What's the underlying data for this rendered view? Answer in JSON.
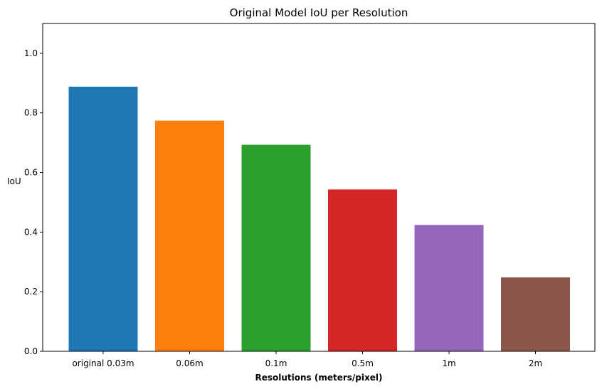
{
  "chart_data": {
    "type": "bar",
    "title": "Original Model IoU per Resolution",
    "xlabel": "Resolutions (meters/pixel)",
    "ylabel": "IoU",
    "categories": [
      "original 0.03m",
      "0.06m",
      "0.1m",
      "0.5m",
      "1m",
      "2m"
    ],
    "values": [
      0.888,
      0.774,
      0.693,
      0.543,
      0.424,
      0.248
    ],
    "colors": [
      "#1f77b4",
      "#ff7f0e",
      "#2ca02c",
      "#d62728",
      "#9467bd",
      "#8c564b"
    ],
    "ylim": [
      0,
      1.1
    ],
    "yticks": [
      0.0,
      0.2,
      0.4,
      0.6,
      0.8,
      1.0
    ],
    "ytick_labels": [
      "0.0",
      "0.2",
      "0.4",
      "0.6",
      "0.8",
      "1.0"
    ],
    "grid": false,
    "legend": "none"
  }
}
